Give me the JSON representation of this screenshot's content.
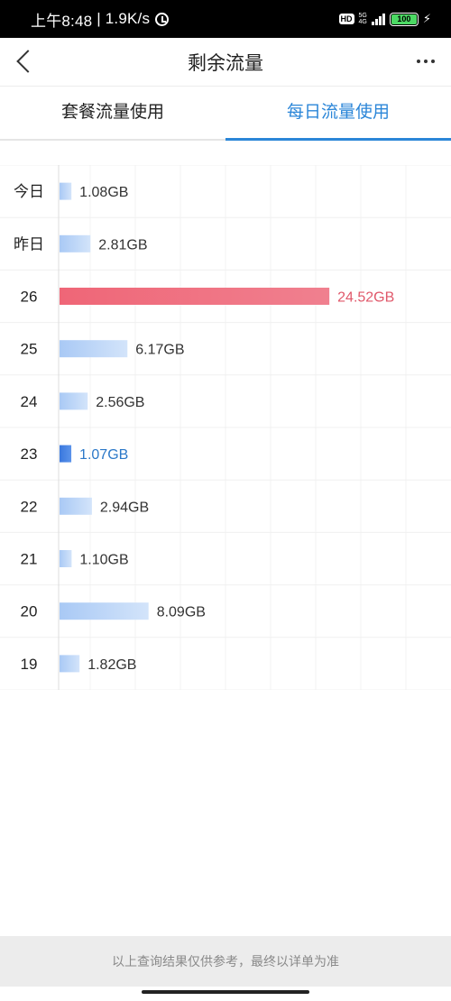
{
  "status_bar": {
    "time": "上午8:48",
    "speed": "1.9K/s",
    "hd": "HD",
    "net_top": "5G",
    "net_bottom": "4G",
    "battery": "100"
  },
  "header": {
    "title": "剩余流量"
  },
  "tabs": [
    {
      "label": "套餐流量使用",
      "active": false
    },
    {
      "label": "每日流量使用",
      "active": true
    }
  ],
  "chart_data": {
    "type": "bar",
    "orientation": "horizontal",
    "unit": "GB",
    "categories": [
      "今日",
      "昨日",
      "26",
      "25",
      "24",
      "23",
      "22",
      "21",
      "20",
      "19"
    ],
    "values": [
      1.08,
      2.81,
      24.52,
      6.17,
      2.56,
      1.07,
      2.94,
      1.1,
      8.09,
      1.82
    ],
    "labels": [
      "1.08GB",
      "2.81GB",
      "24.52GB",
      "6.17GB",
      "2.56GB",
      "1.07GB",
      "2.94GB",
      "1.10GB",
      "8.09GB",
      "1.82GB"
    ],
    "highlight": {
      "max_index": 2,
      "min_index": 5
    },
    "colors": {
      "normal": "#b7d3f7",
      "max": "#ee6b7d",
      "min": "#3f7fe0"
    },
    "grid": true
  },
  "footer": {
    "note": "以上查询结果仅供参考，最终以详单为准"
  }
}
